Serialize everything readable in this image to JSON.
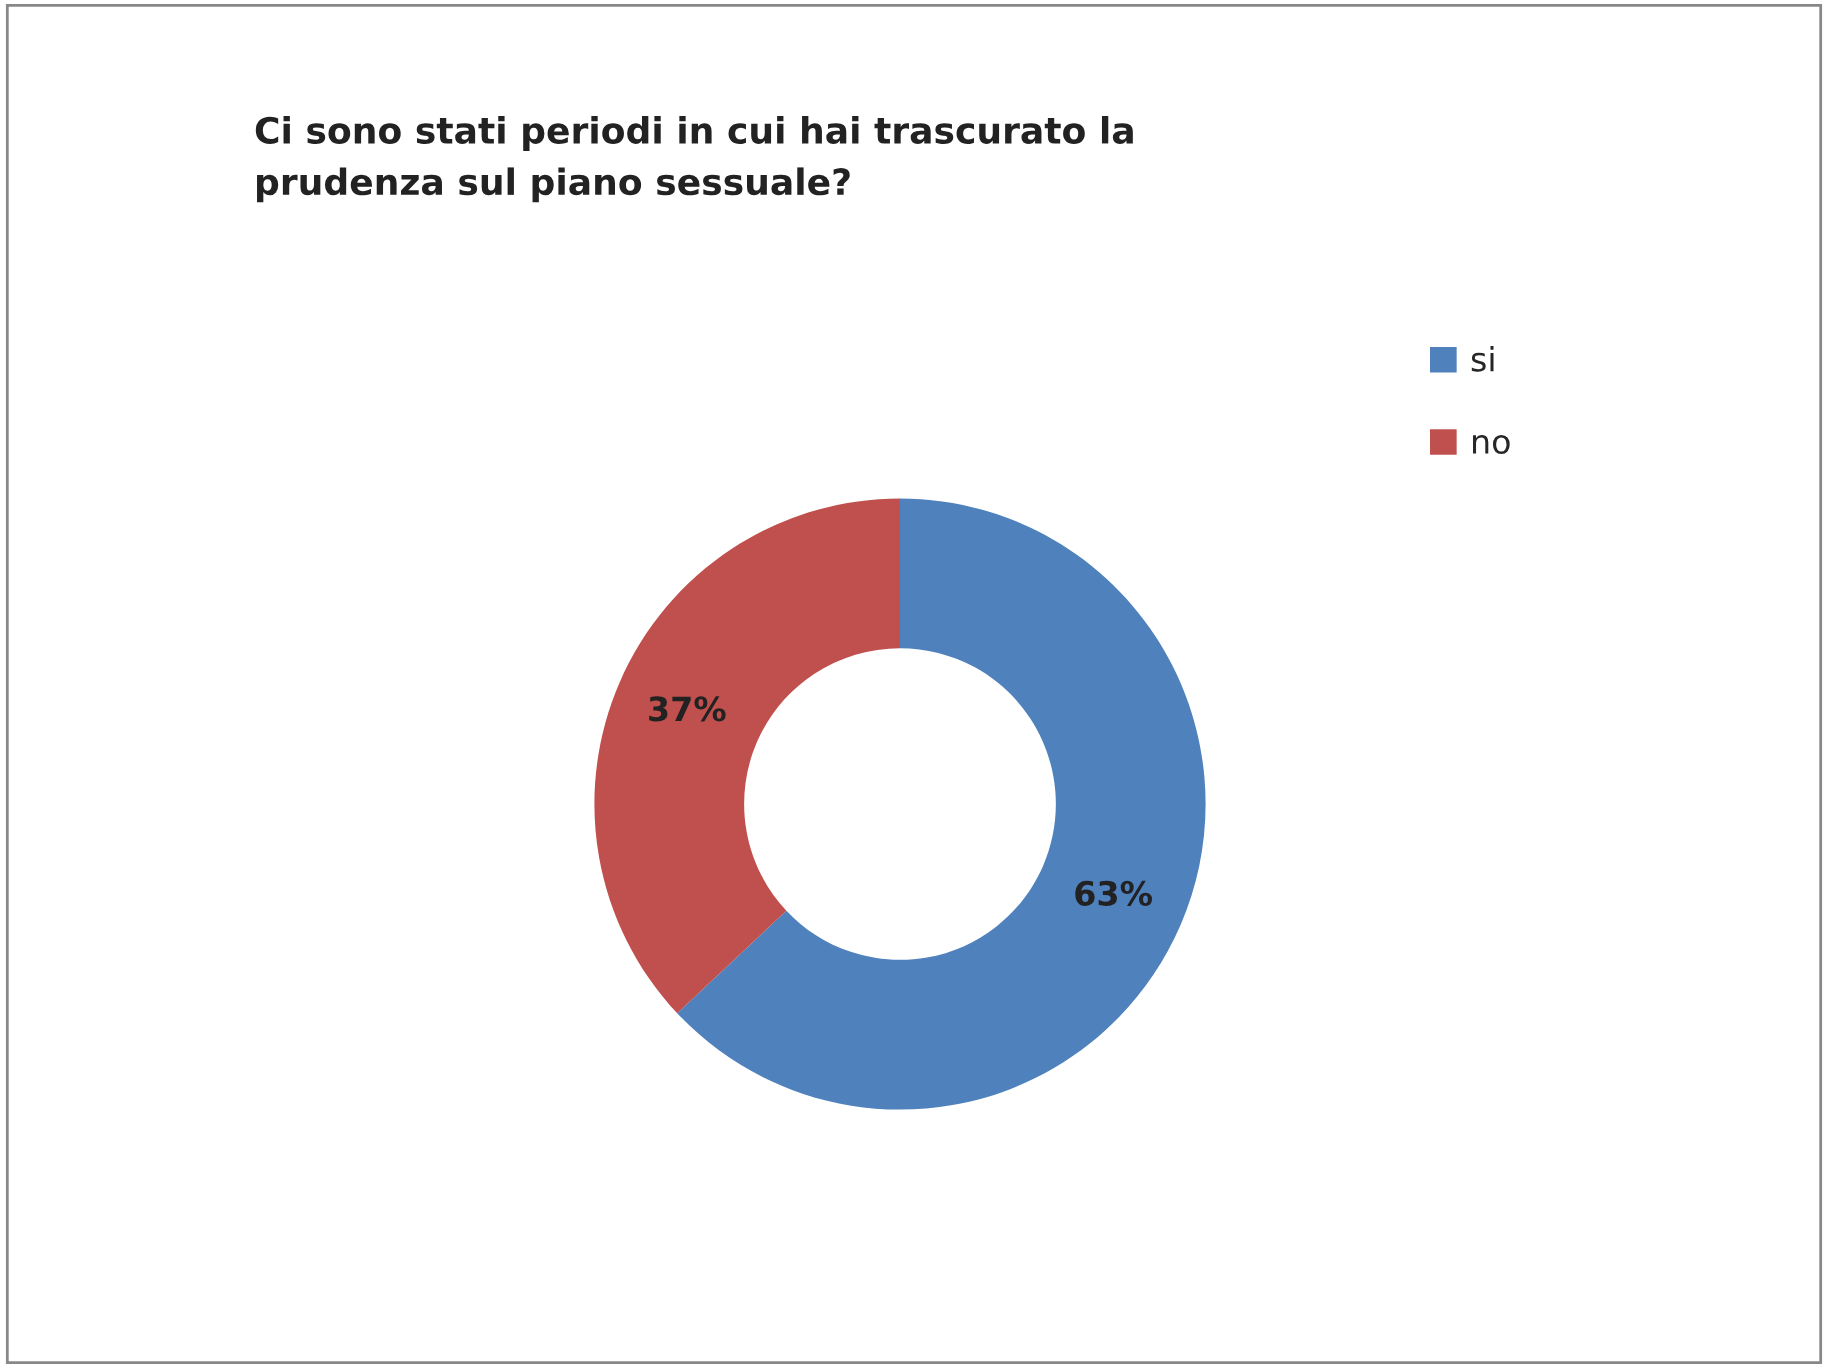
{
  "chart_data": {
    "type": "donut",
    "title": "Ci sono stati periodi in cui hai trascurato la\nprudenza sul piano sessuale?",
    "categories": [
      "si",
      "no"
    ],
    "values": [
      63,
      37
    ],
    "colors": [
      "#4f81bd",
      "#c0504d"
    ],
    "value_labels": [
      "63%",
      "37%"
    ],
    "legend": "right"
  }
}
